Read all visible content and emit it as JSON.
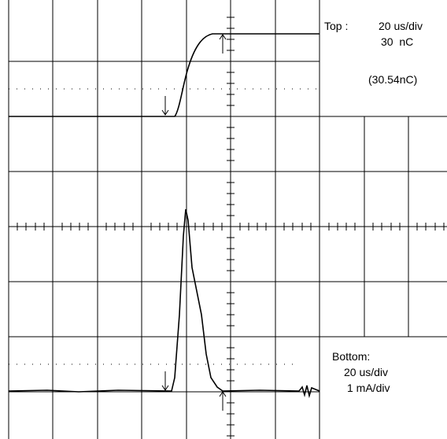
{
  "top_panel": {
    "label": "Top :",
    "timebase": "20 us/div",
    "scale": "30  nC",
    "measured": "(30.54nC)"
  },
  "bottom_panel": {
    "label": "Bottom:",
    "timebase": "20 us/div",
    "scale": "1 mA/div"
  }
}
